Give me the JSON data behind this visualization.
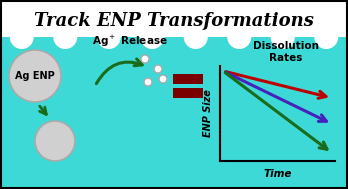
{
  "title": "Track ENP Transformations",
  "bg_color": "#3DD9D6",
  "border_color": "#000000",
  "wave_color": "#FFFFFF",
  "ag_enp_label": "Ag ENP",
  "ag_release_label": "Ag$^+$ Release",
  "dissolution_label": "Dissolution\nRates",
  "xlabel": "Time",
  "ylabel": "ENP Size",
  "large_circle_color": "#D0D0D0",
  "large_circle_edge": "#AAAAAA",
  "small_circle_color": "#FFFFFF",
  "small_circle_edge": "#AAAAAA",
  "arrow_green_color": "#1A6B1A",
  "eq_bar_color": "#7A0000",
  "line_red": "#BB0000",
  "line_blue": "#4422BB",
  "line_green": "#1A6B1A",
  "axis_line_color": "#000000",
  "title_fontsize": 13,
  "body_fontsize": 7.0
}
